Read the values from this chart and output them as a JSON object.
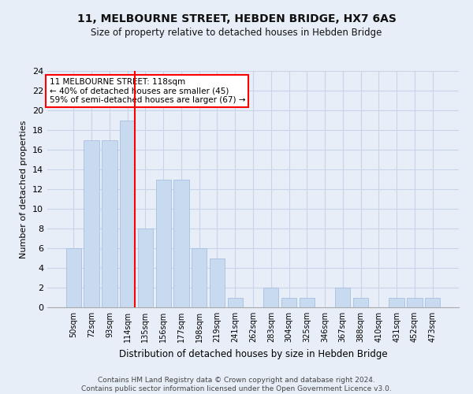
{
  "title": "11, MELBOURNE STREET, HEBDEN BRIDGE, HX7 6AS",
  "subtitle": "Size of property relative to detached houses in Hebden Bridge",
  "xlabel": "Distribution of detached houses by size in Hebden Bridge",
  "ylabel": "Number of detached properties",
  "categories": [
    "50sqm",
    "72sqm",
    "93sqm",
    "114sqm",
    "135sqm",
    "156sqm",
    "177sqm",
    "198sqm",
    "219sqm",
    "241sqm",
    "262sqm",
    "283sqm",
    "304sqm",
    "325sqm",
    "346sqm",
    "367sqm",
    "388sqm",
    "410sqm",
    "431sqm",
    "452sqm",
    "473sqm"
  ],
  "values": [
    6,
    17,
    17,
    19,
    8,
    13,
    13,
    6,
    5,
    1,
    0,
    2,
    1,
    1,
    0,
    2,
    1,
    0,
    1,
    1,
    1
  ],
  "bar_color": "#c8daf0",
  "bar_edge_color": "#a8c0e0",
  "grid_color": "#c8d4e8",
  "background_color": "#e8eef8",
  "red_line_index": 3,
  "annotation_text": "11 MELBOURNE STREET: 118sqm\n← 40% of detached houses are smaller (45)\n59% of semi-detached houses are larger (67) →",
  "annotation_box_color": "white",
  "annotation_box_edge": "red",
  "footer_line1": "Contains HM Land Registry data © Crown copyright and database right 2024.",
  "footer_line2": "Contains public sector information licensed under the Open Government Licence v3.0.",
  "ylim": [
    0,
    24
  ],
  "yticks": [
    0,
    2,
    4,
    6,
    8,
    10,
    12,
    14,
    16,
    18,
    20,
    22,
    24
  ]
}
